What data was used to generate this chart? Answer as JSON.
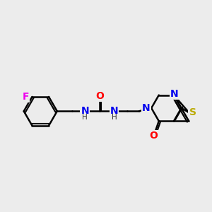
{
  "bg_color": "#ececec",
  "bond_color": "#000000",
  "bond_width": 1.8,
  "atom_labels": {
    "F": {
      "color": "#ee00ee",
      "fontsize": 10,
      "fontweight": "bold"
    },
    "O": {
      "color": "#ff0000",
      "fontsize": 10,
      "fontweight": "bold"
    },
    "N": {
      "color": "#0000ee",
      "fontsize": 10,
      "fontweight": "bold"
    },
    "S": {
      "color": "#bbaa00",
      "fontsize": 10,
      "fontweight": "bold"
    },
    "NH": {
      "color": "#0000ee",
      "fontsize": 10,
      "fontweight": "bold"
    }
  }
}
